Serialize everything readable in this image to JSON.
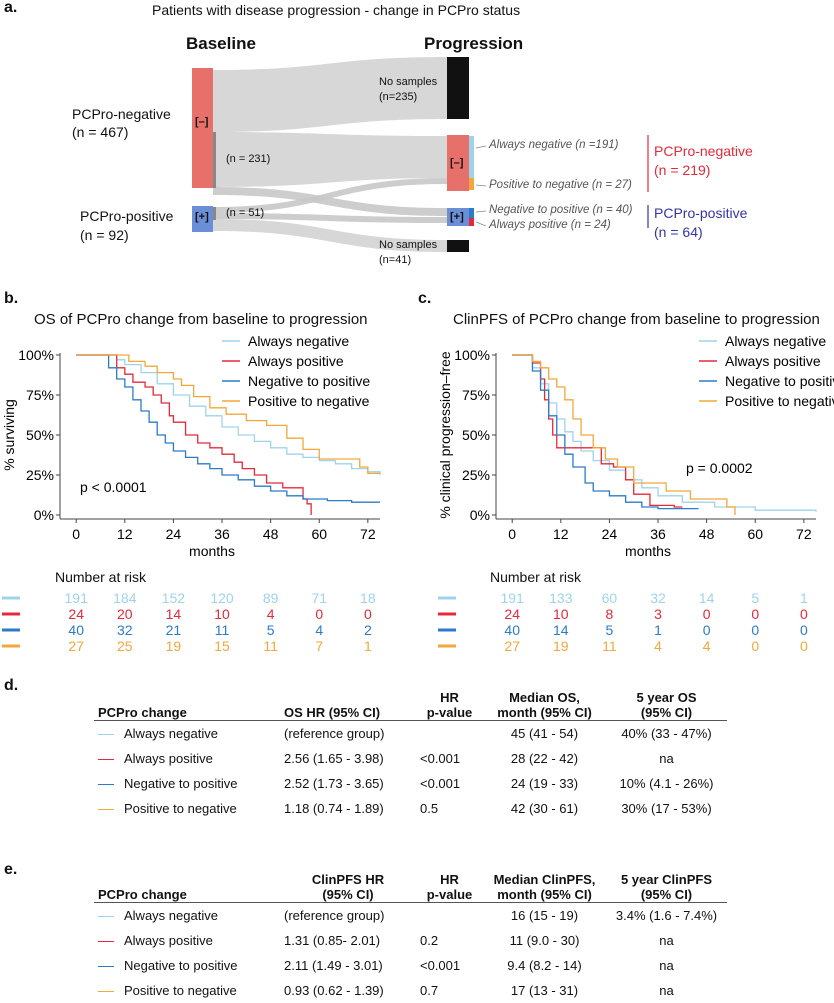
{
  "colors": {
    "always_negative": "#9fd3ec",
    "always_positive": "#e8283a",
    "negative_to_positive": "#2b7bc9",
    "positive_to_negative": "#f2a83a",
    "neg_node": "#e8706a",
    "pos_node": "#6b8fd6",
    "black": "#111111",
    "flow": "#d3d3d3",
    "pcpro_neg_text": "#e8283a",
    "pcpro_pos_text": "#3333aa"
  },
  "panel_a": {
    "letter": "a.",
    "title": "Patients with disease progression - change in PCPro status",
    "baseline_header": "Baseline",
    "progression_header": "Progression",
    "left_neg_label": "PCPro-negative",
    "left_neg_n": "(n = 467)",
    "left_pos_label": "PCPro-positive",
    "left_pos_n": "(n = 92)",
    "node_neg": "[–]",
    "node_pos": "[+]",
    "n231": "(n = 231)",
    "n51": "(n = 51)",
    "no_samples_top_1": "No samples",
    "no_samples_top_2": "(n=235)",
    "no_samples_bottom_1": "No samples",
    "no_samples_bottom_2": "(n=41)",
    "always_negative": "Always negative (n =191)",
    "positive_to_negative": "Positive to negative (n = 27)",
    "negative_to_positive": "Negative to positive (n = 40)",
    "always_positive": "Always positive (n = 24)",
    "right_neg_label": "PCPro-negative",
    "right_neg_n": "(n = 219)",
    "right_pos_label": "PCPro-positive",
    "right_pos_n": "(n = 64)"
  },
  "chart_data": [
    {
      "type": "line",
      "panel": "b.",
      "title": "OS of PCPro change from baseline to progression",
      "xlabel": "months",
      "ylabel": "% surviving",
      "xticks": [
        "0",
        "12",
        "24",
        "36",
        "48",
        "60",
        "72"
      ],
      "yticks": [
        "0%",
        "25%",
        "50%",
        "75%",
        "100%"
      ],
      "xlim": [
        -4,
        75
      ],
      "ylim": [
        0,
        1
      ],
      "annotation": "p < 0.0001",
      "legend": [
        "Always negative",
        "Always positive",
        "Negative to positive",
        "Positive to negative"
      ],
      "series": [
        {
          "name": "Always negative",
          "points": [
            [
              0,
              1
            ],
            [
              9,
              1
            ],
            [
              10,
              0.97
            ],
            [
              12,
              0.94
            ],
            [
              16,
              0.89
            ],
            [
              20,
              0.82
            ],
            [
              24,
              0.75
            ],
            [
              28,
              0.68
            ],
            [
              32,
              0.62
            ],
            [
              36,
              0.55
            ],
            [
              40,
              0.5
            ],
            [
              44,
              0.46
            ],
            [
              48,
              0.42
            ],
            [
              52,
              0.38
            ],
            [
              56,
              0.36
            ],
            [
              60,
              0.34
            ],
            [
              64,
              0.32
            ],
            [
              68,
              0.29
            ],
            [
              72,
              0.27
            ],
            [
              75,
              0.25
            ]
          ]
        },
        {
          "name": "Always positive",
          "points": [
            [
              0,
              1
            ],
            [
              9,
              1
            ],
            [
              10,
              0.92
            ],
            [
              12,
              0.88
            ],
            [
              14,
              0.83
            ],
            [
              17,
              0.8
            ],
            [
              19,
              0.75
            ],
            [
              21,
              0.7
            ],
            [
              23,
              0.62
            ],
            [
              24,
              0.58
            ],
            [
              27,
              0.5
            ],
            [
              30,
              0.45
            ],
            [
              33,
              0.42
            ],
            [
              36,
              0.38
            ],
            [
              39,
              0.33
            ],
            [
              41,
              0.29
            ],
            [
              44,
              0.25
            ],
            [
              47,
              0.2
            ],
            [
              51,
              0.17
            ],
            [
              56,
              0.1
            ],
            [
              57,
              0.07
            ],
            [
              58,
              0.0
            ]
          ]
        },
        {
          "name": "Negative to positive",
          "points": [
            [
              0,
              1
            ],
            [
              6,
              1
            ],
            [
              8,
              0.92
            ],
            [
              10,
              0.85
            ],
            [
              12,
              0.8
            ],
            [
              14,
              0.72
            ],
            [
              16,
              0.65
            ],
            [
              18,
              0.58
            ],
            [
              20,
              0.5
            ],
            [
              22,
              0.45
            ],
            [
              24,
              0.4
            ],
            [
              27,
              0.36
            ],
            [
              30,
              0.32
            ],
            [
              33,
              0.29
            ],
            [
              36,
              0.25
            ],
            [
              40,
              0.22
            ],
            [
              44,
              0.18
            ],
            [
              48,
              0.15
            ],
            [
              52,
              0.12
            ],
            [
              56,
              0.1
            ],
            [
              62,
              0.09
            ],
            [
              68,
              0.08
            ],
            [
              75,
              0.08
            ]
          ]
        },
        {
          "name": "Positive to negative",
          "points": [
            [
              0,
              1
            ],
            [
              12,
              1
            ],
            [
              13,
              0.96
            ],
            [
              17,
              0.93
            ],
            [
              20,
              0.89
            ],
            [
              24,
              0.85
            ],
            [
              26,
              0.81
            ],
            [
              29,
              0.74
            ],
            [
              33,
              0.67
            ],
            [
              37,
              0.63
            ],
            [
              42,
              0.59
            ],
            [
              47,
              0.56
            ],
            [
              52,
              0.48
            ],
            [
              56,
              0.41
            ],
            [
              60,
              0.35
            ],
            [
              68,
              0.35
            ],
            [
              70,
              0.3
            ],
            [
              72,
              0.26
            ],
            [
              75,
              0.26
            ]
          ]
        }
      ],
      "risk_title": "Number at risk",
      "risk": [
        {
          "name": "Always negative",
          "values": [
            "191",
            "184",
            "152",
            "120",
            "89",
            "71",
            "18"
          ]
        },
        {
          "name": "Always positive",
          "values": [
            "24",
            "20",
            "14",
            "10",
            "4",
            "0",
            "0"
          ]
        },
        {
          "name": "Negative to positive",
          "values": [
            "40",
            "32",
            "21",
            "11",
            "5",
            "4",
            "2"
          ]
        },
        {
          "name": "Positive to negative",
          "values": [
            "27",
            "25",
            "19",
            "15",
            "11",
            "7",
            "1"
          ]
        }
      ]
    },
    {
      "type": "line",
      "panel": "c.",
      "title": "ClinPFS of PCPro change from baseline to progression",
      "xlabel": "months",
      "ylabel": "% clinical progression–free",
      "xticks": [
        "0",
        "12",
        "24",
        "36",
        "48",
        "60",
        "72"
      ],
      "yticks": [
        "0%",
        "25%",
        "50%",
        "75%",
        "100%"
      ],
      "xlim": [
        -4,
        75
      ],
      "ylim": [
        0,
        1
      ],
      "annotation": "p = 0.0002",
      "legend": [
        "Always negative",
        "Always positive",
        "Negative to positive",
        "Positive to negative"
      ],
      "series": [
        {
          "name": "Always negative",
          "points": [
            [
              0,
              1
            ],
            [
              3,
              1
            ],
            [
              5,
              0.92
            ],
            [
              7,
              0.82
            ],
            [
              9,
              0.7
            ],
            [
              11,
              0.6
            ],
            [
              13,
              0.52
            ],
            [
              15,
              0.46
            ],
            [
              17,
              0.4
            ],
            [
              20,
              0.34
            ],
            [
              24,
              0.28
            ],
            [
              28,
              0.22
            ],
            [
              32,
              0.17
            ],
            [
              36,
              0.12
            ],
            [
              42,
              0.08
            ],
            [
              50,
              0.05
            ],
            [
              60,
              0.03
            ],
            [
              75,
              0.02
            ]
          ]
        },
        {
          "name": "Always positive",
          "points": [
            [
              0,
              1
            ],
            [
              3,
              1
            ],
            [
              5,
              0.95
            ],
            [
              7,
              0.85
            ],
            [
              8,
              0.72
            ],
            [
              9,
              0.6
            ],
            [
              10,
              0.5
            ],
            [
              11,
              0.42
            ],
            [
              20,
              0.42
            ],
            [
              22,
              0.32
            ],
            [
              25,
              0.3
            ],
            [
              28,
              0.22
            ],
            [
              30,
              0.13
            ],
            [
              32,
              0.13
            ],
            [
              34,
              0.06
            ],
            [
              40,
              0.05
            ],
            [
              42,
              0.05
            ]
          ]
        },
        {
          "name": "Negative to positive",
          "points": [
            [
              0,
              1
            ],
            [
              3,
              1
            ],
            [
              5,
              0.9
            ],
            [
              7,
              0.78
            ],
            [
              9,
              0.62
            ],
            [
              11,
              0.5
            ],
            [
              13,
              0.38
            ],
            [
              15,
              0.3
            ],
            [
              18,
              0.2
            ],
            [
              20,
              0.15
            ],
            [
              24,
              0.12
            ],
            [
              28,
              0.08
            ],
            [
              32,
              0.05
            ],
            [
              36,
              0.04
            ],
            [
              46,
              0.04
            ]
          ]
        },
        {
          "name": "Positive to negative",
          "points": [
            [
              0,
              1
            ],
            [
              3,
              1
            ],
            [
              5,
              0.96
            ],
            [
              7,
              0.92
            ],
            [
              9,
              0.85
            ],
            [
              11,
              0.8
            ],
            [
              13,
              0.72
            ],
            [
              15,
              0.6
            ],
            [
              17,
              0.5
            ],
            [
              20,
              0.42
            ],
            [
              23,
              0.35
            ],
            [
              26,
              0.3
            ],
            [
              30,
              0.2
            ],
            [
              32,
              0.2
            ],
            [
              38,
              0.15
            ],
            [
              44,
              0.1
            ],
            [
              50,
              0.1
            ],
            [
              53,
              0.05
            ],
            [
              55,
              0.0
            ]
          ]
        }
      ],
      "risk_title": "Number at risk",
      "risk": [
        {
          "name": "Always negative",
          "values": [
            "191",
            "133",
            "60",
            "32",
            "14",
            "5",
            "1"
          ]
        },
        {
          "name": "Always positive",
          "values": [
            "24",
            "10",
            "8",
            "3",
            "0",
            "0",
            "0"
          ]
        },
        {
          "name": "Negative to positive",
          "values": [
            "40",
            "14",
            "5",
            "1",
            "0",
            "0",
            "0"
          ]
        },
        {
          "name": "Positive to negative",
          "values": [
            "27",
            "19",
            "11",
            "4",
            "4",
            "0",
            "0"
          ]
        }
      ]
    },
    {
      "type": "table",
      "panel": "d.",
      "headers": [
        "PCPro change",
        "OS HR (95% CI)",
        "HR\np-value",
        "Median OS,\nmonth (95% CI)",
        "5 year OS\n(95% CI)"
      ],
      "rows": [
        [
          "Always negative",
          "(reference group)",
          "",
          "45 (41 - 54)",
          "40% (33 - 47%)"
        ],
        [
          "Always positive",
          "2.56 (1.65 - 3.98)",
          "<0.001",
          "28 (22 - 42)",
          "na"
        ],
        [
          "Negative to positive",
          "2.52 (1.73 - 3.65)",
          "<0.001",
          "24 (19 - 33)",
          "10% (4.1 - 26%)"
        ],
        [
          "Positive to negative",
          "1.18 (0.74 - 1.89)",
          "0.5",
          "42 (30 - 61)",
          "30% (17 - 53%)"
        ]
      ]
    },
    {
      "type": "table",
      "panel": "e.",
      "headers": [
        "PCPro change",
        "ClinPFS HR\n(95% CI)",
        "HR\np-value",
        "Median ClinPFS,\nmonth (95% CI)",
        "5 year ClinPFS\n(95% CI)"
      ],
      "rows": [
        [
          "Always negative",
          "(reference group)",
          "",
          "16 (15 - 19)",
          "3.4% (1.6 - 7.4%)"
        ],
        [
          "Always positive",
          "1.31 (0.85- 2.01)",
          "0.2",
          "11 (9.0 - 30)",
          "na"
        ],
        [
          "Negative to positive",
          "2.11 (1.49 - 3.01)",
          "<0.001",
          "9.4 (8.2 - 14)",
          "na"
        ],
        [
          "Positive to negative",
          "0.93 (0.62 - 1.39)",
          "0.7",
          "17 (13 - 31)",
          "na"
        ]
      ]
    }
  ]
}
